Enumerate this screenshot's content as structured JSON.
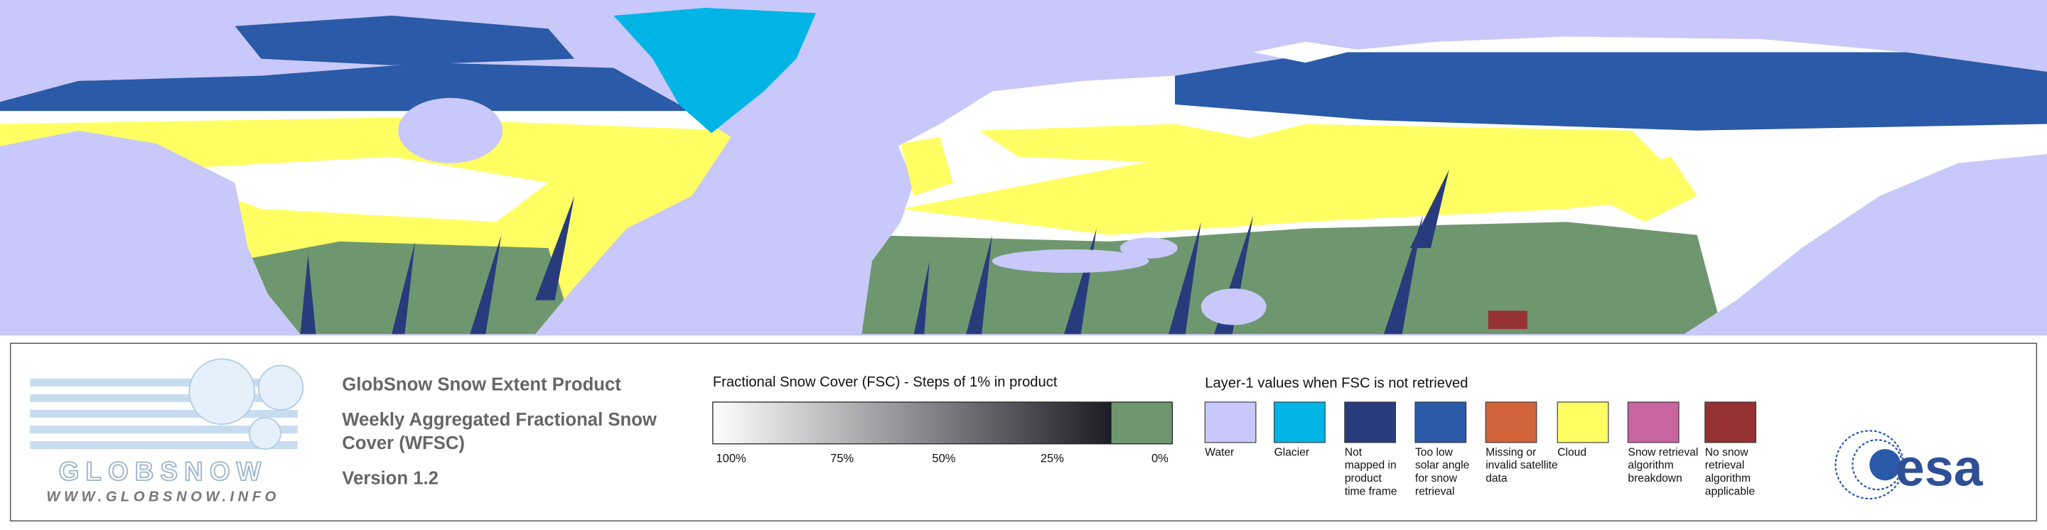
{
  "logo": {
    "name": "GLOBSNOW",
    "url": "WWW.GLOBSNOW.INFO"
  },
  "header": {
    "title": "GlobSnow Snow Extent Product",
    "subtitle_lines": [
      "Weekly Aggregated Fractional Snow",
      "Cover (WFSC)"
    ],
    "version": "Version 1.2"
  },
  "fsc_legend": {
    "title": "Fractional Snow Cover (FSC) - Steps of 1% in product",
    "ticks": [
      "100%",
      "75%",
      "50%",
      "25%",
      "0%"
    ],
    "gradient": [
      "#ffffff",
      "#1c1c26"
    ],
    "no_snow_color": "#6f976f"
  },
  "layer1_legend": {
    "title": "Layer-1 values when FSC is not retrieved",
    "items": [
      {
        "label_lines": [
          "Water"
        ],
        "color": "#c8c8fa"
      },
      {
        "label_lines": [
          "Glacier"
        ],
        "color": "#00b4e6"
      },
      {
        "label_lines": [
          "Not",
          "mapped in",
          "product",
          "time frame"
        ],
        "color": "#283c7d"
      },
      {
        "label_lines": [
          "Too low",
          "solar angle",
          "for snow",
          "retrieval"
        ],
        "color": "#2a5aa8"
      },
      {
        "label_lines": [
          "Missing or",
          "invalid satellite",
          "data"
        ],
        "color": "#d2643c"
      },
      {
        "label_lines": [
          "Cloud"
        ],
        "color": "#ffff64"
      },
      {
        "label_lines": [
          "Snow retrieval",
          "algorithm",
          "breakdown"
        ],
        "color": "#c864a0"
      },
      {
        "label_lines": [
          "No snow",
          "retrieval",
          "algorithm",
          "applicable"
        ],
        "color": "#963232"
      }
    ]
  },
  "esa_logo": "esa"
}
